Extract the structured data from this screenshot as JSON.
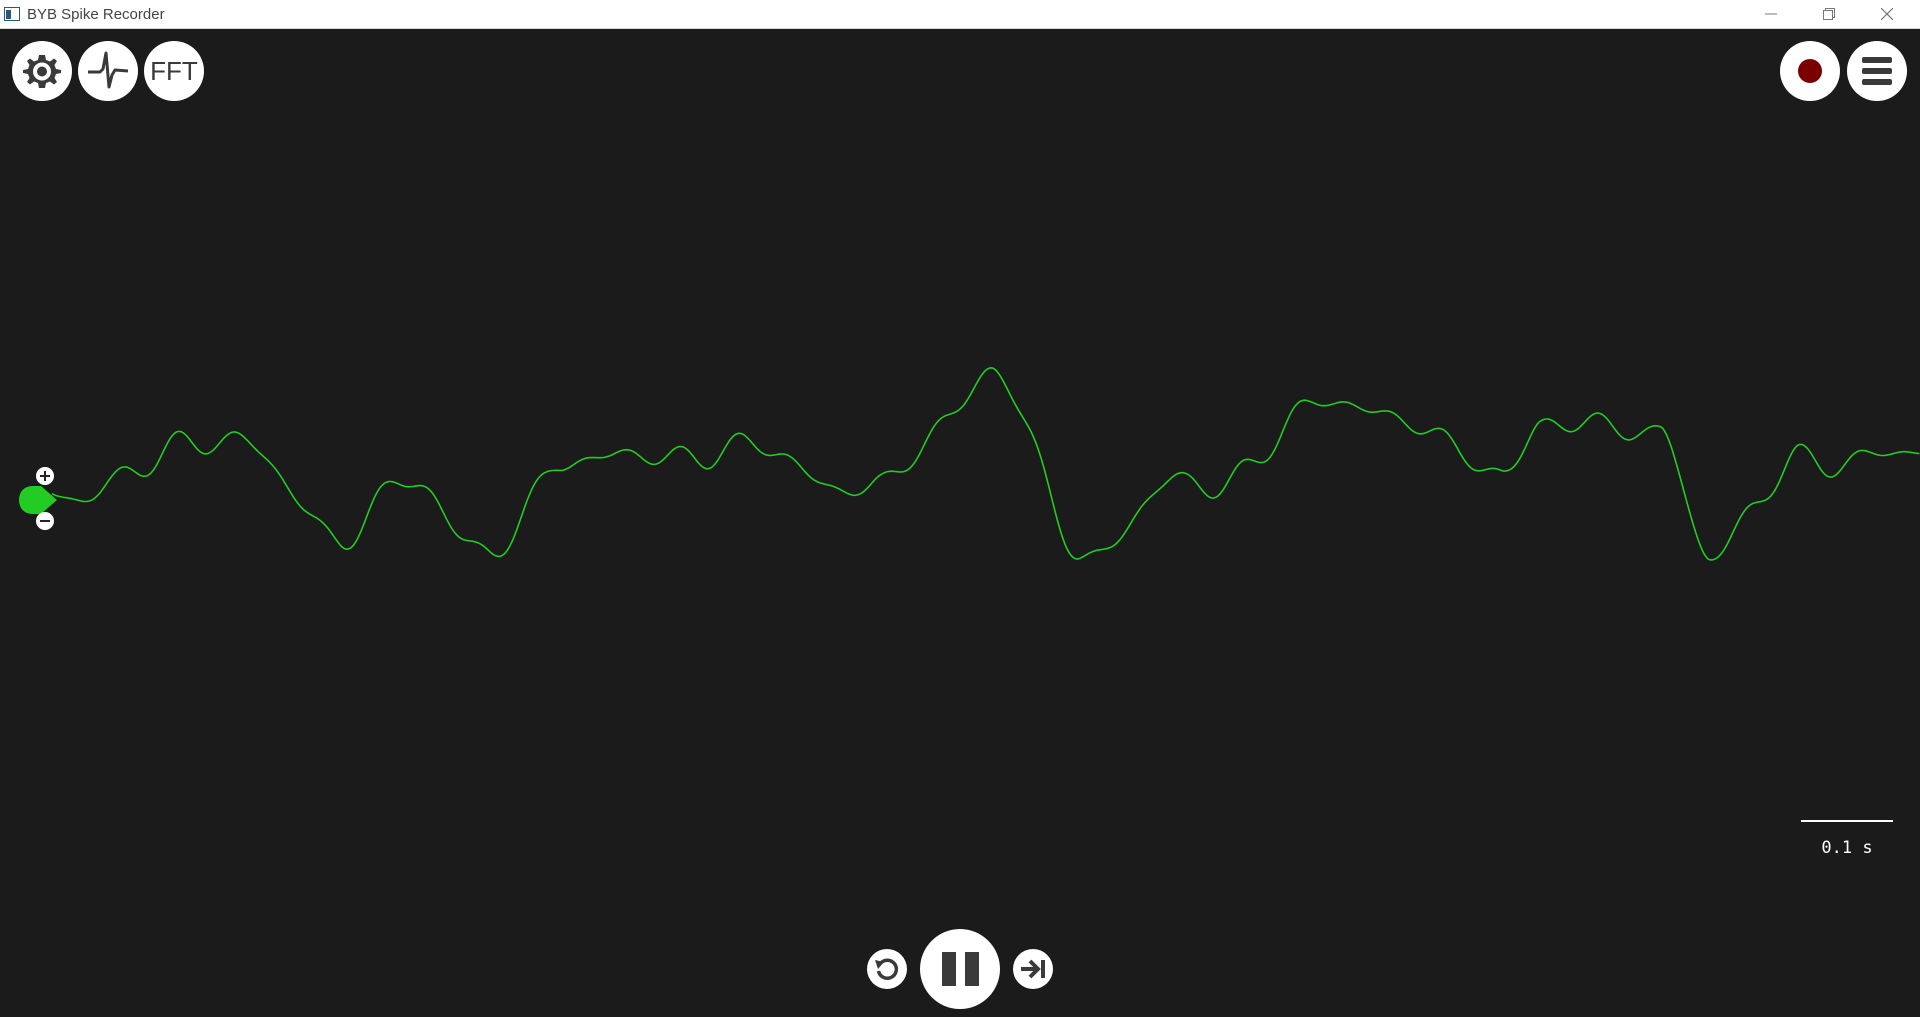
{
  "window": {
    "title": "BYB Spike Recorder",
    "controls": [
      "minimize-icon",
      "restore-icon",
      "close-icon"
    ]
  },
  "toolbar_left": {
    "settings": {
      "icon": "gear-icon"
    },
    "threshold": {
      "icon": "spike-waveform-icon"
    },
    "fft": {
      "label": "FFT"
    }
  },
  "toolbar_right": {
    "record": {
      "icon": "record-icon",
      "color": "#7a0000"
    },
    "menu": {
      "icon": "hamburger-menu-icon"
    }
  },
  "channel": {
    "color": "#22cc22",
    "gain_up_icon": "plus-icon",
    "gain_down_icon": "minus-icon"
  },
  "scale": {
    "label": "0.1 s"
  },
  "playback": {
    "rewind": {
      "icon": "rewind-icon"
    },
    "pause": {
      "icon": "pause-icon"
    },
    "forward": {
      "icon": "skip-to-end-icon"
    }
  }
}
